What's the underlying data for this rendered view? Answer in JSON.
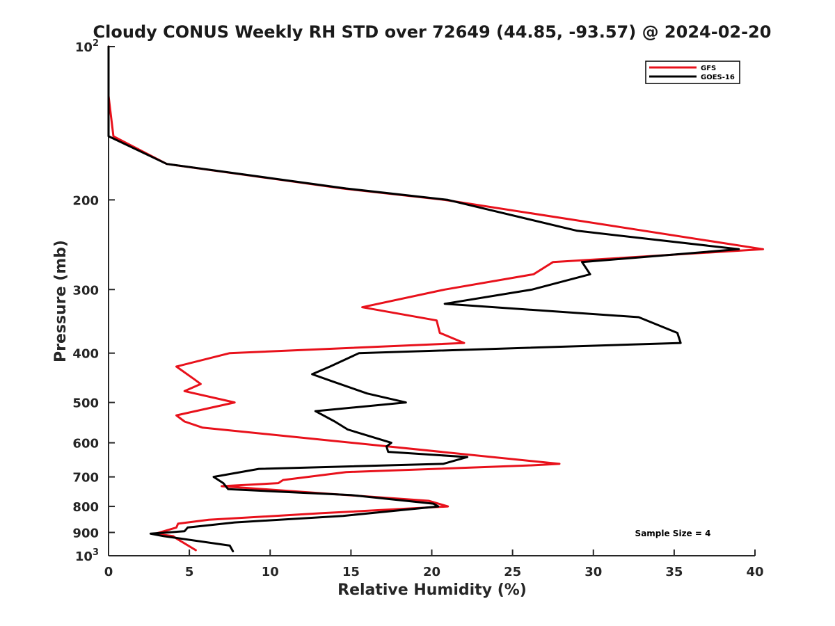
{
  "chart_data": {
    "type": "line",
    "title": "Cloudy CONUS Weekly RH STD over 72649 (44.85, -93.57) @ 2024-02-20",
    "xlabel": "Relative Humidity (%)",
    "ylabel": "Pressure (mb)",
    "xlim": [
      0,
      40
    ],
    "ylim": [
      100,
      1000
    ],
    "y_scale": "log",
    "y_reversed": true,
    "grid": false,
    "x_ticks": [
      0,
      5,
      10,
      15,
      20,
      25,
      30,
      35,
      40
    ],
    "x_tick_labels": [
      "0",
      "5",
      "10",
      "15",
      "20",
      "25",
      "30",
      "35",
      "40"
    ],
    "y_ticks": [
      100,
      200,
      300,
      400,
      500,
      600,
      700,
      800,
      900,
      1000
    ],
    "y_tick_labels": [
      {
        "base": "10",
        "exp": "2"
      },
      {
        "base": "200",
        "exp": ""
      },
      {
        "base": "300",
        "exp": ""
      },
      {
        "base": "400",
        "exp": ""
      },
      {
        "base": "500",
        "exp": ""
      },
      {
        "base": "600",
        "exp": ""
      },
      {
        "base": "700",
        "exp": ""
      },
      {
        "base": "800",
        "exp": ""
      },
      {
        "base": "900",
        "exp": ""
      },
      {
        "base": "10",
        "exp": "3"
      }
    ],
    "legend_position": "top-right",
    "annotation": "Sample Size = 4",
    "series": [
      {
        "name": "GFS",
        "color": "#e8111b",
        "points": [
          [
            0.0,
            100
          ],
          [
            0.0,
            125
          ],
          [
            0.3,
            150
          ],
          [
            3.6,
            170
          ],
          [
            14.5,
            190
          ],
          [
            20.8,
            200
          ],
          [
            40.5,
            250
          ],
          [
            27.5,
            265
          ],
          [
            26.3,
            280
          ],
          [
            20.8,
            300
          ],
          [
            15.7,
            325
          ],
          [
            20.3,
            345
          ],
          [
            20.5,
            365
          ],
          [
            22.0,
            382
          ],
          [
            7.5,
            400
          ],
          [
            4.2,
            425
          ],
          [
            5.3,
            450
          ],
          [
            5.7,
            460
          ],
          [
            4.7,
            475
          ],
          [
            7.8,
            500
          ],
          [
            4.2,
            530
          ],
          [
            4.7,
            545
          ],
          [
            5.8,
            560
          ],
          [
            27.9,
            660
          ],
          [
            25.9,
            665
          ],
          [
            14.7,
            685
          ],
          [
            10.8,
            710
          ],
          [
            10.5,
            720
          ],
          [
            7.0,
            730
          ],
          [
            19.8,
            780
          ],
          [
            21.0,
            800
          ],
          [
            13.2,
            825
          ],
          [
            6.2,
            850
          ],
          [
            4.3,
            865
          ],
          [
            4.2,
            880
          ],
          [
            2.9,
            905
          ],
          [
            4.0,
            915
          ],
          [
            4.2,
            925
          ],
          [
            5.4,
            975
          ]
        ]
      },
      {
        "name": "GOES-16",
        "color": "#000000",
        "points": [
          [
            0.0,
            100
          ],
          [
            0.0,
            150
          ],
          [
            3.6,
            170
          ],
          [
            14.7,
            190
          ],
          [
            21.0,
            200
          ],
          [
            29.0,
            230
          ],
          [
            39.0,
            250
          ],
          [
            29.3,
            265
          ],
          [
            29.8,
            280
          ],
          [
            26.2,
            300
          ],
          [
            20.8,
            320
          ],
          [
            32.8,
            340
          ],
          [
            35.2,
            365
          ],
          [
            35.4,
            382
          ],
          [
            15.5,
            400
          ],
          [
            13.7,
            425
          ],
          [
            12.6,
            440
          ],
          [
            13.9,
            455
          ],
          [
            16.0,
            480
          ],
          [
            18.4,
            500
          ],
          [
            12.8,
            520
          ],
          [
            14.0,
            545
          ],
          [
            14.8,
            565
          ],
          [
            17.5,
            600
          ],
          [
            17.2,
            610
          ],
          [
            17.3,
            625
          ],
          [
            22.2,
            640
          ],
          [
            20.7,
            660
          ],
          [
            9.3,
            675
          ],
          [
            6.5,
            700
          ],
          [
            7.1,
            720
          ],
          [
            7.4,
            740
          ],
          [
            15.0,
            760
          ],
          [
            20.1,
            790
          ],
          [
            20.4,
            800
          ],
          [
            14.5,
            835
          ],
          [
            7.8,
            860
          ],
          [
            4.9,
            880
          ],
          [
            4.7,
            895
          ],
          [
            2.6,
            905
          ],
          [
            3.4,
            915
          ],
          [
            7.5,
            955
          ],
          [
            7.7,
            980
          ]
        ]
      }
    ]
  }
}
